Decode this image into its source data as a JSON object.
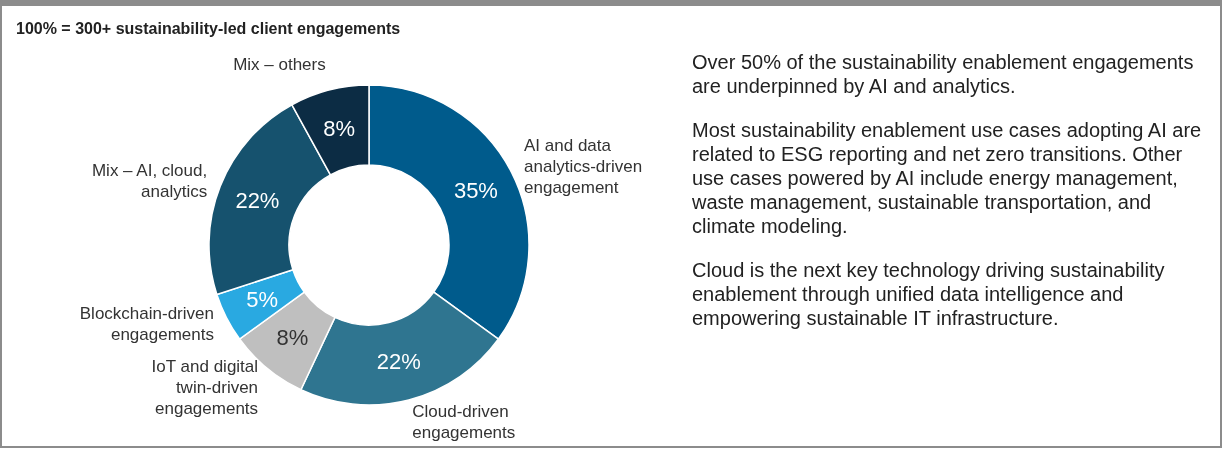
{
  "chart_data": {
    "type": "donut",
    "title": "100% = 300+ sustainability-led client engagements",
    "categories": [
      "AI and data analytics-driven engagement",
      "Cloud-driven engagements",
      "IoT and digital twin-driven engagements",
      "Blockchain-driven engagements",
      "Mix – AI, cloud, analytics",
      "Mix – others"
    ],
    "values": [
      35,
      22,
      8,
      5,
      22,
      8
    ],
    "colors": [
      "#005b8c",
      "#2f7590",
      "#bfbfbf",
      "#29a9e1",
      "#16526e",
      "#0c2c44"
    ],
    "value_labels": [
      "35%",
      "22%",
      "8%",
      "5%",
      "22%",
      "8%"
    ],
    "legend": false,
    "annotations": [
      "Over 50% of the sustainability enablement engagements are underpinned by AI and analytics.",
      "Most sustainability enablement use cases adopting AI are related to ESG reporting and net zero transitions. Other use cases powered by AI include energy management, waste management, sustainable transportation, and climate modeling.",
      "Cloud is the next key technology driving sustainability enablement through unified data intelligence and empowering sustainable IT infrastructure."
    ]
  }
}
